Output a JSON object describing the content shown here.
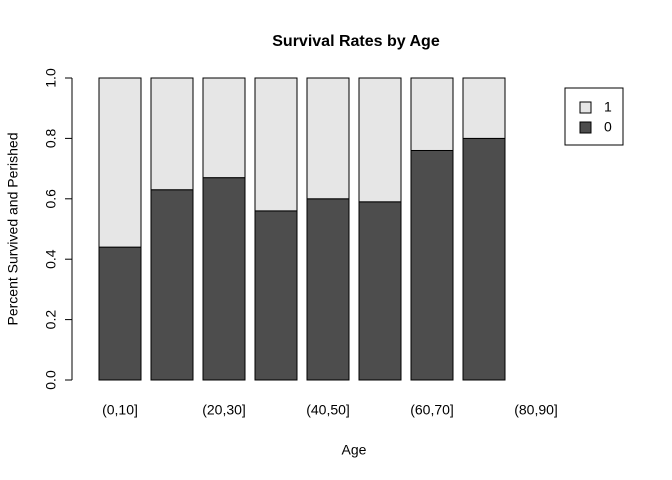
{
  "chart_data": {
    "type": "stacked_bar",
    "title": "Survival Rates by Age",
    "x_label": "Age",
    "y_label": "Percent Survived and Perished",
    "categories": [
      "(0,10]",
      null,
      "(20,30]",
      null,
      "(40,50]",
      null,
      "(60,70]",
      null,
      "(80,90]"
    ],
    "series": [
      {
        "name": "0",
        "color": "#4d4d4d",
        "values": [
          0.44,
          0.63,
          0.67,
          0.56,
          0.6,
          0.59,
          0.76,
          0.8,
          null
        ]
      },
      {
        "name": "1",
        "color": "#e6e6e6",
        "values": [
          0.56,
          0.37,
          0.33,
          0.44,
          0.4,
          0.41,
          0.24,
          0.2,
          null
        ]
      }
    ],
    "ylim": [
      0,
      1
    ],
    "yticks": [
      {
        "value": 0,
        "label": "0.0"
      },
      0.2,
      0.4,
      0.6,
      0.8,
      {
        "value": 1,
        "label": "1.0"
      }
    ],
    "legend": "topright",
    "grid": false
  }
}
